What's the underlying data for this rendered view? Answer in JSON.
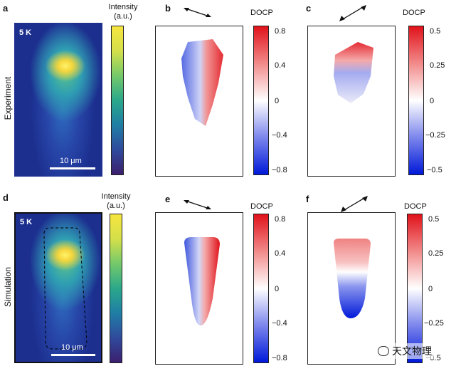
{
  "panels": {
    "a": "a",
    "b": "b",
    "c": "c",
    "d": "d",
    "e": "e",
    "f": "f"
  },
  "row_labels": {
    "top": "Experiment",
    "bottom": "Simulation"
  },
  "temperature_label": "5 K",
  "scale_bar_label": "10 μm",
  "intensity_colorbar": {
    "title_line1": "Intensity",
    "title_line2": "(a.u.)"
  },
  "docp_title": "DOCP",
  "docp_ticks_08": [
    "0.8",
    "0.4",
    "0",
    "−0.4",
    "−0.8"
  ],
  "docp_ticks_05": [
    "0.5",
    "0.25",
    "0",
    "−0.25",
    "−0.5"
  ],
  "watermark": "天文物理",
  "colors": {
    "red": "#e0121a",
    "blue": "#0019d9",
    "map_background": "#1c2f8f"
  }
}
